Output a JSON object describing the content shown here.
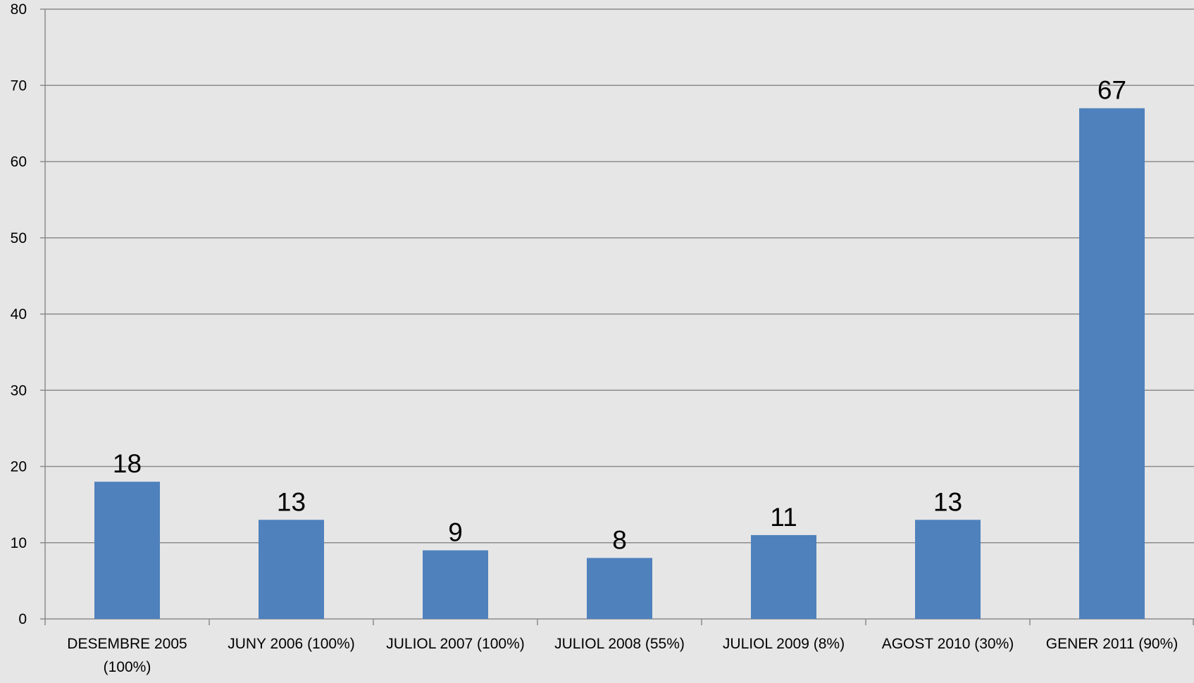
{
  "chart_data": {
    "type": "bar",
    "categories": [
      [
        "DESEMBRE 2005",
        "(100%)"
      ],
      [
        "JUNY 2006 (100%)"
      ],
      [
        "JULIOL 2007 (100%)"
      ],
      [
        "JULIOL 2008 (55%)"
      ],
      [
        "JULIOL 2009 (8%)"
      ],
      [
        "AGOST 2010 (30%)"
      ],
      [
        "GENER 2011 (90%)"
      ]
    ],
    "values": [
      18,
      13,
      9,
      8,
      11,
      13,
      67
    ],
    "data_labels": [
      "18",
      "13",
      "9",
      "8",
      "11",
      "13",
      "67"
    ],
    "y_ticks": [
      0,
      10,
      20,
      30,
      40,
      50,
      60,
      70,
      80
    ],
    "ylim": [
      0,
      80
    ],
    "grid": true,
    "legend": "none",
    "colors": {
      "bar": "#4f81bd",
      "background": "#e6e6e6",
      "gridline": "#8c8c8c",
      "text": "#000000"
    }
  }
}
